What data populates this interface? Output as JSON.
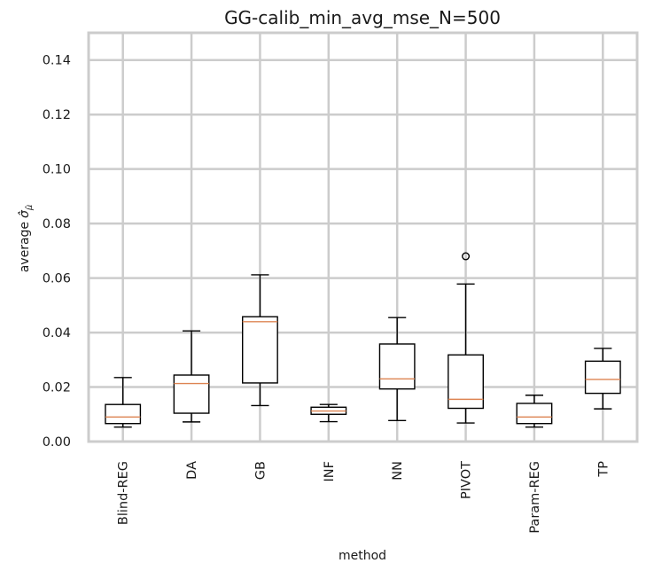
{
  "chart_data": {
    "type": "box",
    "title": "GG-calib_min_avg_mse_N=500",
    "xlabel": "method",
    "ylabel_prefix": "average",
    "ylabel_math": "σ̂",
    "ylabel_sub": "μ̂",
    "ylim": [
      0,
      0.15
    ],
    "yticks": [
      "0.00",
      "0.02",
      "0.04",
      "0.06",
      "0.08",
      "0.10",
      "0.12",
      "0.14"
    ],
    "grid": true,
    "categories": [
      "Blind-REG",
      "DA",
      "GB",
      "INF",
      "NN",
      "PIVOT",
      "Param-REG",
      "TP"
    ],
    "boxes": [
      {
        "whislo": 0.0053,
        "q1": 0.0066,
        "med": 0.009,
        "q3": 0.0136,
        "whishi": 0.0235,
        "fliers": []
      },
      {
        "whislo": 0.0072,
        "q1": 0.0104,
        "med": 0.0213,
        "q3": 0.0244,
        "whishi": 0.0406,
        "fliers": []
      },
      {
        "whislo": 0.0132,
        "q1": 0.0215,
        "med": 0.044,
        "q3": 0.0458,
        "whishi": 0.0612,
        "fliers": []
      },
      {
        "whislo": 0.0073,
        "q1": 0.01,
        "med": 0.0112,
        "q3": 0.0126,
        "whishi": 0.0136,
        "fliers": []
      },
      {
        "whislo": 0.0077,
        "q1": 0.0193,
        "med": 0.023,
        "q3": 0.0358,
        "whishi": 0.0455,
        "fliers": []
      },
      {
        "whislo": 0.0068,
        "q1": 0.0122,
        "med": 0.0155,
        "q3": 0.0318,
        "whishi": 0.0578,
        "fliers": [
          0.068
        ]
      },
      {
        "whislo": 0.0053,
        "q1": 0.0066,
        "med": 0.009,
        "q3": 0.014,
        "whishi": 0.017,
        "fliers": []
      },
      {
        "whislo": 0.012,
        "q1": 0.0177,
        "med": 0.0228,
        "q3": 0.0295,
        "whishi": 0.0342,
        "fliers": []
      }
    ],
    "colors": {
      "grid": "#cccccc",
      "frame": "#cccccc",
      "box": "#000000",
      "median": "#dd8452"
    }
  }
}
